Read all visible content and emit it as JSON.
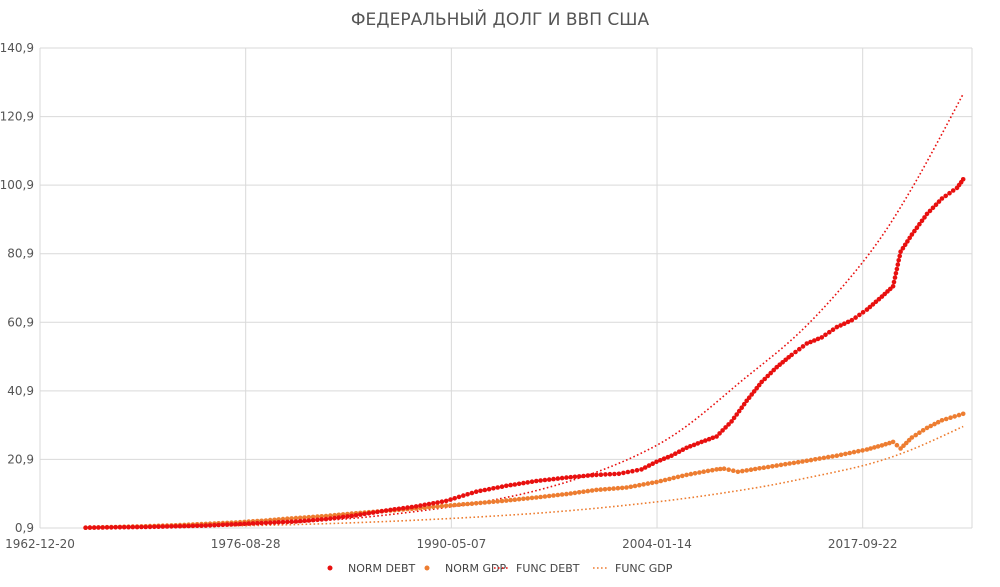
{
  "chart_data": {
    "type": "scatter",
    "title": "ФЕДЕРАЛЬНЫЙ ДОЛГ И ВВП США",
    "xlabel": "",
    "ylabel": "",
    "x_ticks": [
      "1962-12-20",
      "1976-08-28",
      "1990-05-07",
      "2004-01-14",
      "2017-09-22"
    ],
    "x_range": [
      "1962-12-20",
      "2024-12-31"
    ],
    "y_ticks": [
      "0,9",
      "20,9",
      "40,9",
      "60,9",
      "80,9",
      "100,9",
      "120,9",
      "140,9"
    ],
    "ylim": [
      0.9,
      140.9
    ],
    "grid": true,
    "legend_position": "bottom",
    "series": [
      {
        "name": "NORM DEBT",
        "kind": "dots",
        "color": "#e8100f",
        "points": [
          [
            "1966-01-01",
            1.0
          ],
          [
            "1968-01-01",
            1.1
          ],
          [
            "1970-01-01",
            1.2
          ],
          [
            "1972-01-01",
            1.4
          ],
          [
            "1974-01-01",
            1.6
          ],
          [
            "1976-01-01",
            2.0
          ],
          [
            "1978-01-01",
            2.4
          ],
          [
            "1980-01-01",
            2.8
          ],
          [
            "1982-01-01",
            3.5
          ],
          [
            "1984-01-01",
            4.6
          ],
          [
            "1986-01-01",
            6.0
          ],
          [
            "1988-01-01",
            7.2
          ],
          [
            "1990-01-01",
            8.8
          ],
          [
            "1992-01-01",
            11.5
          ],
          [
            "1994-01-01",
            13.2
          ],
          [
            "1996-01-01",
            14.6
          ],
          [
            "1998-01-01",
            15.6
          ],
          [
            "2000-01-01",
            16.4
          ],
          [
            "2001-07-01",
            16.7
          ],
          [
            "2003-01-01",
            18.0
          ],
          [
            "2004-01-01",
            20.2
          ],
          [
            "2005-01-01",
            22.0
          ],
          [
            "2006-01-01",
            24.3
          ],
          [
            "2007-01-01",
            26.0
          ],
          [
            "2008-01-01",
            27.6
          ],
          [
            "2009-01-01",
            32.0
          ],
          [
            "2010-01-01",
            38.0
          ],
          [
            "2011-01-01",
            43.5
          ],
          [
            "2012-01-01",
            47.8
          ],
          [
            "2013-01-01",
            51.4
          ],
          [
            "2014-01-01",
            54.7
          ],
          [
            "2015-01-01",
            56.5
          ],
          [
            "2016-01-01",
            59.5
          ],
          [
            "2017-01-01",
            61.5
          ],
          [
            "2018-01-01",
            64.6
          ],
          [
            "2019-01-01",
            68.4
          ],
          [
            "2019-10-01",
            71.4
          ],
          [
            "2020-04-01",
            81.5
          ],
          [
            "2021-01-01",
            86.5
          ],
          [
            "2022-01-01",
            92.5
          ],
          [
            "2023-01-01",
            97.0
          ],
          [
            "2024-01-01",
            100.1
          ],
          [
            "2024-06-01",
            102.6
          ]
        ]
      },
      {
        "name": "NORM GDP",
        "kind": "dots",
        "color": "#ed7d31",
        "points": [
          [
            "1966-01-01",
            1.0
          ],
          [
            "1968-01-01",
            1.2
          ],
          [
            "1970-01-01",
            1.4
          ],
          [
            "1972-01-01",
            1.7
          ],
          [
            "1974-01-01",
            2.1
          ],
          [
            "1976-01-01",
            2.5
          ],
          [
            "1978-01-01",
            3.1
          ],
          [
            "1980-01-01",
            3.8
          ],
          [
            "1982-01-01",
            4.4
          ],
          [
            "1984-01-01",
            5.2
          ],
          [
            "1986-01-01",
            5.9
          ],
          [
            "1988-01-01",
            6.6
          ],
          [
            "1990-01-01",
            7.4
          ],
          [
            "1992-01-01",
            8.1
          ],
          [
            "1994-01-01",
            8.9
          ],
          [
            "1996-01-01",
            9.8
          ],
          [
            "1998-01-01",
            10.8
          ],
          [
            "2000-01-01",
            12.0
          ],
          [
            "2002-01-01",
            12.7
          ],
          [
            "2004-01-01",
            14.3
          ],
          [
            "2006-01-01",
            16.4
          ],
          [
            "2008-01-01",
            18.0
          ],
          [
            "2008-07-01",
            18.2
          ],
          [
            "2009-06-01",
            17.3
          ],
          [
            "2010-01-01",
            17.7
          ],
          [
            "2012-01-01",
            19.1
          ],
          [
            "2014-01-01",
            20.5
          ],
          [
            "2016-01-01",
            22.0
          ],
          [
            "2018-01-01",
            23.8
          ],
          [
            "2019-01-01",
            25.0
          ],
          [
            "2019-10-01",
            26.0
          ],
          [
            "2020-04-01",
            24.1
          ],
          [
            "2021-01-01",
            27.3
          ],
          [
            "2022-01-01",
            30.1
          ],
          [
            "2023-01-01",
            32.3
          ],
          [
            "2024-06-01",
            34.2
          ]
        ]
      },
      {
        "name": "FUNC DEBT",
        "kind": "dotted",
        "color": "#e8100f",
        "points": [
          [
            "1966-01-01",
            1.0
          ],
          [
            "1976-01-01",
            1.8
          ],
          [
            "1986-01-01",
            4.7
          ],
          [
            "1996-01-01",
            11.8
          ],
          [
            "2004-01-01",
            25.0
          ],
          [
            "2010-01-01",
            45.0
          ],
          [
            "2014-01-01",
            60.0
          ],
          [
            "2018-01-01",
            80.0
          ],
          [
            "2021-01-01",
            100.0
          ],
          [
            "2024-06-01",
            127.5
          ]
        ]
      },
      {
        "name": "FUNC GDP",
        "kind": "dotted",
        "color": "#ed7d31",
        "points": [
          [
            "1966-01-01",
            1.0
          ],
          [
            "1976-01-01",
            1.5
          ],
          [
            "1986-01-01",
            2.8
          ],
          [
            "1996-01-01",
            5.2
          ],
          [
            "2004-01-01",
            8.5
          ],
          [
            "2010-01-01",
            12.2
          ],
          [
            "2014-01-01",
            15.5
          ],
          [
            "2018-01-01",
            19.4
          ],
          [
            "2021-01-01",
            23.8
          ],
          [
            "2024-06-01",
            30.5
          ]
        ]
      }
    ]
  }
}
